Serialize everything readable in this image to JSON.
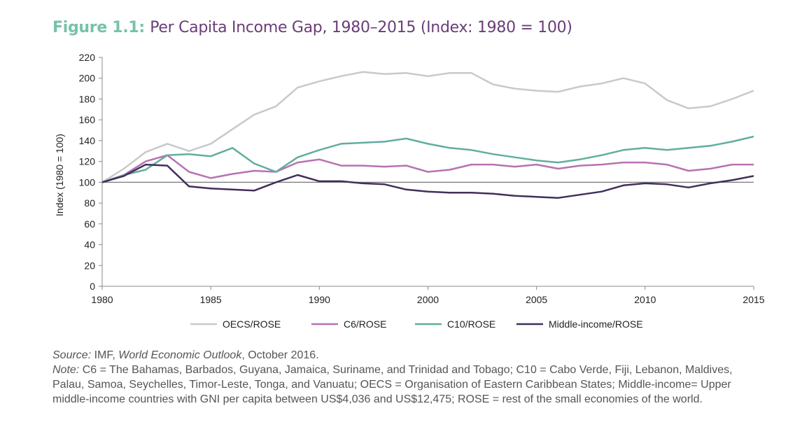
{
  "title": {
    "figure_label": "Figure 1.1:",
    "text": "Per Capita Income Gap, 1980–2015 (Index: 1980 = 100)"
  },
  "chart_data": {
    "type": "line",
    "title": "Per Capita Income Gap, 1980–2015 (Index: 1980 = 100)",
    "xlabel": "",
    "ylabel": "Index (1980 = 100)",
    "ylim": [
      0,
      220
    ],
    "y_ticks": [
      0,
      20,
      40,
      60,
      80,
      100,
      120,
      140,
      160,
      180,
      200,
      220
    ],
    "x_tick_labels": [
      "1980",
      "1985",
      "1990",
      "2000",
      "2005",
      "2010",
      "2015"
    ],
    "reference_line": 100,
    "grid": false,
    "legend_position": "bottom",
    "series": [
      {
        "name": "OECS/ROSE",
        "color": "#c9c9c9",
        "values": [
          100,
          113,
          129,
          137,
          130,
          137,
          151,
          165,
          173,
          191,
          197,
          202,
          206,
          204,
          205,
          202,
          205,
          205,
          194,
          190,
          188,
          187,
          192,
          195,
          200,
          195,
          179,
          171,
          173,
          180,
          188
        ]
      },
      {
        "name": "C6/ROSE",
        "color": "#b772b2",
        "values": [
          100,
          107,
          120,
          126,
          110,
          104,
          108,
          111,
          110,
          119,
          122,
          116,
          116,
          115,
          116,
          110,
          112,
          117,
          117,
          115,
          117,
          113,
          116,
          117,
          119,
          119,
          117,
          111,
          113,
          117,
          117
        ]
      },
      {
        "name": "C10/ROSE",
        "color": "#62ad9e",
        "values": [
          100,
          107,
          112,
          126,
          127,
          125,
          133,
          118,
          110,
          124,
          131,
          137,
          138,
          139,
          142,
          137,
          133,
          131,
          127,
          124,
          121,
          119,
          122,
          126,
          131,
          133,
          131,
          133,
          135,
          139,
          144
        ]
      },
      {
        "name": "Middle-income/ROSE",
        "color": "#41305a",
        "values": [
          100,
          106,
          117,
          116,
          96,
          94,
          93,
          92,
          100,
          107,
          101,
          101,
          99,
          98,
          93,
          91,
          90,
          90,
          89,
          87,
          86,
          85,
          88,
          91,
          97,
          99,
          98,
          95,
          99,
          102,
          106
        ]
      }
    ]
  },
  "notes": {
    "source_label": "Source:",
    "source_pre": " IMF, ",
    "source_italic": "World Economic Outlook",
    "source_post": ", October 2016.",
    "note_label": "Note:",
    "note_text": " C6 = The Bahamas, Barbados, Guyana, Jamaica, Suriname, and Trinidad and Tobago; C10 = Cabo Verde, Fiji, Lebanon, Maldives, Palau, Samoa, Seychelles, Timor-Leste, Tonga, and Vanuatu; OECS = Organisation of Eastern Caribbean States; Middle-income= Upper middle-income countries with GNI per capita between US$4,036 and US$12,475; ROSE = rest of the small economies of the world."
  }
}
